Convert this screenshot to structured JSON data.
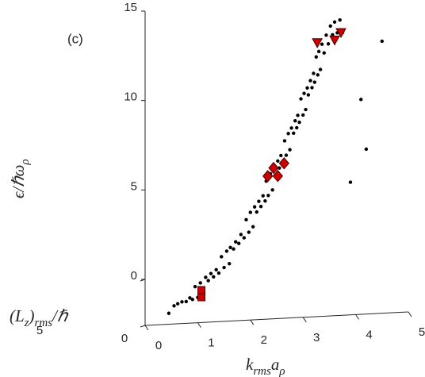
{
  "chart_data": {
    "type": "scatter",
    "annotation": "(c)",
    "xlabel": [
      "k",
      "rms",
      "a",
      "ρ"
    ],
    "ylabel": [
      "ϵ/ℏω",
      "ρ"
    ],
    "zlabel": [
      "(L",
      "z",
      ")",
      "rms",
      "/ℏ"
    ],
    "xlim": [
      0,
      5
    ],
    "ylim": [
      0,
      15
    ],
    "zlim": [
      0,
      5
    ],
    "xticks": [
      0,
      1,
      2,
      3,
      4,
      5
    ],
    "yticks": [
      0,
      5,
      10,
      15
    ],
    "zticks": [
      0,
      5
    ],
    "series": [
      {
        "marker": "dot",
        "color": "#000000",
        "x": [
          0.45,
          0.55,
          0.62,
          0.7,
          0.78,
          0.85,
          0.9,
          0.95,
          1.0,
          1.05,
          1.1,
          1.15,
          1.2,
          1.25,
          1.3,
          1.35,
          1.4,
          1.45,
          1.5,
          1.55,
          1.6,
          1.62,
          1.68,
          1.72,
          1.78,
          1.82,
          1.88,
          1.92,
          1.97,
          2.0,
          2.05,
          2.08,
          2.12,
          2.16,
          2.2,
          2.24,
          2.28,
          2.3,
          2.34,
          2.38,
          2.42,
          2.45,
          2.48,
          2.52,
          2.55,
          2.58,
          2.62,
          2.65,
          2.68,
          2.72,
          2.75,
          2.78,
          2.82,
          2.85,
          2.88,
          2.9,
          2.93,
          2.96,
          3.0,
          3.02,
          3.05,
          3.08,
          3.1,
          3.14,
          3.17,
          3.2,
          3.22,
          3.25,
          3.28,
          3.3,
          3.33,
          3.36,
          3.4,
          3.44,
          3.48,
          3.52,
          3.56,
          3.6,
          3.65,
          3.7,
          3.75,
          4.1,
          4.2,
          4.5,
          3.9
        ],
        "y": [
          0.3,
          0.5,
          0.4,
          0.8,
          0.6,
          1.1,
          0.8,
          1.3,
          1.0,
          1.6,
          1.3,
          2.0,
          1.6,
          2.3,
          1.9,
          2.6,
          2.2,
          2.9,
          2.6,
          3.3,
          2.9,
          3.6,
          3.3,
          4.0,
          3.7,
          4.5,
          4.1,
          4.9,
          4.5,
          5.4,
          4.9,
          5.8,
          5.3,
          6.2,
          5.7,
          6.6,
          6.1,
          7.0,
          6.5,
          7.5,
          6.9,
          7.9,
          7.3,
          8.4,
          7.8,
          8.8,
          8.2,
          9.2,
          8.7,
          9.7,
          9.1,
          10.1,
          9.6,
          10.6,
          10.0,
          11.0,
          10.4,
          11.5,
          10.9,
          11.9,
          11.3,
          12.3,
          11.7,
          12.8,
          12.2,
          13.3,
          12.6,
          13.8,
          13.1,
          14.2,
          13.5,
          14.7,
          14.0,
          15.3,
          14.6,
          15.9,
          15.2,
          15.7,
          15.4,
          15.9,
          15.5,
          11.5,
          8.5,
          14.8,
          6.8
        ],
        "z": [
          0.6,
          1.0,
          1.4,
          0.8,
          1.2,
          0.6,
          1.0,
          1.4,
          0.8,
          1.2,
          0.6,
          1.0,
          1.4,
          0.8,
          1.2,
          0.6,
          1.0,
          1.4,
          0.8,
          1.2,
          0.6,
          1.0,
          1.4,
          0.8,
          1.2,
          0.6,
          1.0,
          1.4,
          0.8,
          1.2,
          0.6,
          1.0,
          1.4,
          0.8,
          1.2,
          0.6,
          1.0,
          1.4,
          0.8,
          1.2,
          0.6,
          1.0,
          1.4,
          0.8,
          1.2,
          0.6,
          1.0,
          1.4,
          0.8,
          1.2,
          0.6,
          1.0,
          1.4,
          0.8,
          1.2,
          0.6,
          1.0,
          1.4,
          0.8,
          1.2,
          0.6,
          1.0,
          1.4,
          0.8,
          1.2,
          0.6,
          1.0,
          1.4,
          0.8,
          1.2,
          0.6,
          1.0,
          1.4,
          0.8,
          1.2,
          0.6,
          1.0,
          1.4,
          0.8,
          1.2,
          0.6,
          1.0,
          1.4,
          0.8,
          1.2
        ]
      },
      {
        "marker": "square",
        "color": "#cc0000",
        "x": [
          1.07,
          1.07
        ],
        "y": [
          1.3,
          0.9
        ],
        "z": [
          1,
          1
        ]
      },
      {
        "marker": "diamond",
        "color": "#cc0000",
        "x": [
          2.33,
          2.52,
          2.64,
          2.44
        ],
        "y": [
          7.48,
          7.46,
          8.15,
          7.92
        ],
        "z": [
          1,
          1,
          1,
          1
        ]
      },
      {
        "marker": "triangle",
        "color": "#cc0000",
        "x": [
          3.27,
          3.6,
          3.72
        ],
        "y": [
          14.8,
          14.9,
          15.3
        ],
        "z": [
          1,
          1,
          1
        ]
      }
    ]
  }
}
